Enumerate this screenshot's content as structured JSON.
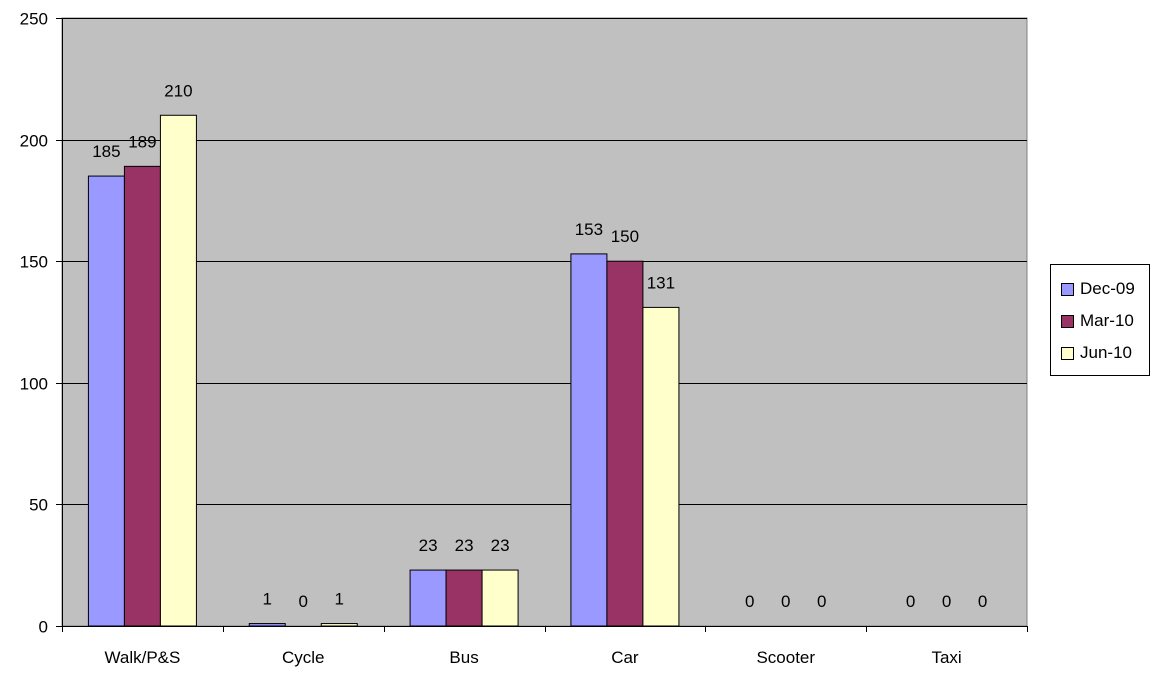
{
  "chart_data": {
    "type": "bar",
    "categories": [
      "Walk/P&S",
      "Cycle",
      "Bus",
      "Car",
      "Scooter",
      "Taxi"
    ],
    "series": [
      {
        "name": "Dec-09",
        "color": "#9999ff",
        "values": [
          185,
          1,
          23,
          153,
          0,
          0
        ]
      },
      {
        "name": "Mar-10",
        "color": "#993366",
        "values": [
          189,
          0,
          23,
          150,
          0,
          0
        ]
      },
      {
        "name": "Jun-10",
        "color": "#ffffcc",
        "values": [
          210,
          1,
          23,
          131,
          0,
          0
        ]
      }
    ],
    "y_ticks": [
      "0",
      "50",
      "100",
      "150",
      "200",
      "250"
    ],
    "ylim": [
      0,
      250
    ],
    "grid": true,
    "plot_background": "#c0c0c0",
    "legend_position": "right"
  }
}
